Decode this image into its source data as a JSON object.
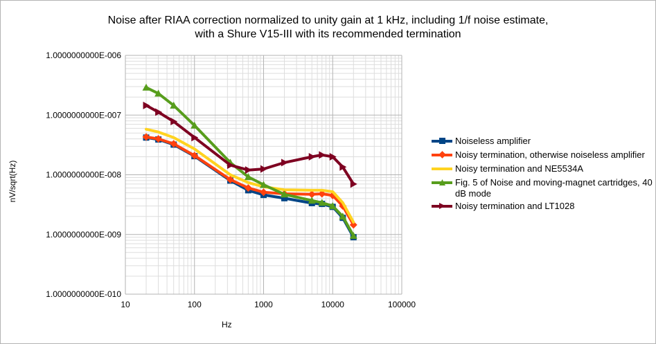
{
  "chart_data": {
    "type": "line",
    "title_line1": "Noise after RIAA correction normalized to unity gain at 1 kHz, including 1/f noise estimate,",
    "title_line2": "with a Shure V15-III with its recommended termination",
    "xlabel": "Hz",
    "ylabel": "nV/sqrt(Hz)",
    "xscale": "log",
    "yscale": "log",
    "xlim": [
      10,
      100000
    ],
    "ylim": [
      1e-10,
      1e-06
    ],
    "x_ticks": [
      10,
      100,
      1000,
      10000,
      100000
    ],
    "x_tick_labels": [
      "10",
      "100",
      "1000",
      "10000",
      "100000"
    ],
    "y_ticks": [
      1e-06,
      1e-07,
      1e-08,
      1e-09,
      1e-10
    ],
    "y_tick_labels": [
      "1.0000000000E-006",
      "1.0000000000E-007",
      "1.0000000000E-008",
      "1.0000000000E-009",
      "1.0000000000E-010"
    ],
    "grid": true,
    "legend_position": "right",
    "series": [
      {
        "name": "Noiseless amplifier",
        "color": "#004586",
        "marker": "square",
        "x": [
          20,
          30,
          50,
          100,
          330,
          600,
          1000,
          2000,
          5000,
          7000,
          10000,
          14000,
          20000
        ],
        "y": [
          4.2e-08,
          3.9e-08,
          3.2e-08,
          2.05e-08,
          8e-09,
          5.5e-09,
          4.6e-09,
          4.05e-09,
          3.35e-09,
          3.25e-09,
          2.9e-09,
          1.9e-09,
          9e-10
        ]
      },
      {
        "name": "Noisy termination, otherwise noiseless amplifier",
        "color": "#ff420e",
        "marker": "diamond",
        "x": [
          20,
          30,
          50,
          100,
          330,
          600,
          1000,
          2000,
          5000,
          7000,
          10000,
          14000,
          20000
        ],
        "y": [
          4.3e-08,
          4e-08,
          3.3e-08,
          2.1e-08,
          8.3e-09,
          6e-09,
          5.1e-09,
          4.8e-09,
          4.7e-09,
          4.8e-09,
          4.5e-09,
          3e-09,
          1.45e-09
        ]
      },
      {
        "name": "Noisy termination and NE5534A",
        "color": "#ffd320",
        "marker": "none",
        "x": [
          20,
          30,
          50,
          100,
          330,
          600,
          1000,
          2000,
          5000,
          7000,
          10000,
          14000,
          20000
        ],
        "y": [
          5.8e-08,
          5.2e-08,
          4.2e-08,
          2.7e-08,
          1e-08,
          7.4e-09,
          6.3e-09,
          5.6e-09,
          5.5e-09,
          5.5e-09,
          5.2e-09,
          3.4e-09,
          1.6e-09
        ]
      },
      {
        "name": "Fig. 5 of Noise and moving-magnet cartridges, 40 dB mode",
        "color": "#579d1c",
        "marker": "triangle",
        "x": [
          20,
          30,
          50,
          100,
          330,
          600,
          1000,
          2000,
          5000,
          7000,
          10000,
          14000,
          20000
        ],
        "y": [
          2.9e-07,
          2.3e-07,
          1.45e-07,
          6.7e-08,
          1.6e-08,
          9.2e-09,
          6.8e-09,
          4.7e-09,
          3.7e-09,
          3.4e-09,
          3e-09,
          2e-09,
          9.5e-10
        ]
      },
      {
        "name": "Noisy termination and LT1028",
        "color": "#7e0021",
        "marker": "triangle-right",
        "x": [
          20,
          30,
          50,
          100,
          330,
          600,
          1000,
          2000,
          5000,
          7000,
          10000,
          14000,
          20000
        ],
        "y": [
          1.45e-07,
          1.12e-07,
          7.8e-08,
          4.2e-08,
          1.45e-08,
          1.2e-08,
          1.25e-08,
          1.6e-08,
          2e-08,
          2.15e-08,
          2e-08,
          1.35e-08,
          7e-09
        ]
      }
    ]
  }
}
